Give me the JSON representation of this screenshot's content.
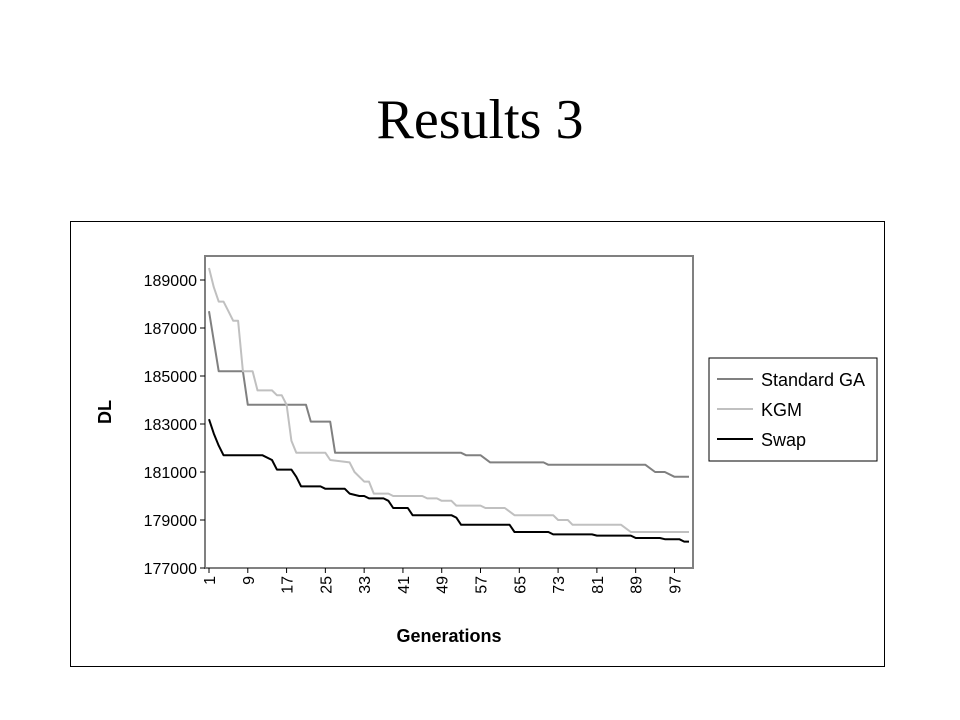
{
  "slide": {
    "title": "Results 3"
  },
  "chart_data": {
    "type": "line",
    "title": "",
    "xlabel": "Generations",
    "ylabel": "DL",
    "ylim": [
      177000,
      190000
    ],
    "xlim": [
      1,
      100
    ],
    "yticks": [
      177000,
      179000,
      181000,
      183000,
      185000,
      187000,
      189000
    ],
    "xticks": [
      1,
      9,
      17,
      25,
      33,
      41,
      49,
      57,
      65,
      73,
      81,
      89,
      97
    ],
    "legend_position": "right",
    "background": "#ffffff",
    "series": [
      {
        "name": "Standard GA",
        "color": "#808080",
        "points": [
          [
            1,
            187700
          ],
          [
            3,
            185200
          ],
          [
            8,
            185200
          ],
          [
            9,
            183800
          ],
          [
            21,
            183800
          ],
          [
            22,
            183100
          ],
          [
            26,
            183100
          ],
          [
            27,
            181800
          ],
          [
            53,
            181800
          ],
          [
            54,
            181700
          ],
          [
            57,
            181700
          ],
          [
            59,
            181400
          ],
          [
            70,
            181400
          ],
          [
            71,
            181300
          ],
          [
            91,
            181300
          ],
          [
            93,
            181000
          ],
          [
            95,
            181000
          ],
          [
            97,
            180800
          ],
          [
            100,
            180800
          ]
        ]
      },
      {
        "name": "KGM",
        "color": "#c0c0c0",
        "points": [
          [
            1,
            189500
          ],
          [
            2,
            188700
          ],
          [
            3,
            188100
          ],
          [
            4,
            188100
          ],
          [
            5,
            187700
          ],
          [
            6,
            187300
          ],
          [
            7,
            187300
          ],
          [
            8,
            185200
          ],
          [
            10,
            185200
          ],
          [
            11,
            184400
          ],
          [
            14,
            184400
          ],
          [
            15,
            184200
          ],
          [
            16,
            184200
          ],
          [
            17,
            183800
          ],
          [
            18,
            182300
          ],
          [
            19,
            181800
          ],
          [
            25,
            181800
          ],
          [
            26,
            181500
          ],
          [
            30,
            181400
          ],
          [
            31,
            181000
          ],
          [
            33,
            180600
          ],
          [
            34,
            180600
          ],
          [
            35,
            180100
          ],
          [
            38,
            180100
          ],
          [
            39,
            180000
          ],
          [
            45,
            180000
          ],
          [
            46,
            179900
          ],
          [
            48,
            179900
          ],
          [
            49,
            179800
          ],
          [
            51,
            179800
          ],
          [
            52,
            179600
          ],
          [
            57,
            179600
          ],
          [
            58,
            179500
          ],
          [
            62,
            179500
          ],
          [
            64,
            179200
          ],
          [
            72,
            179200
          ],
          [
            73,
            179000
          ],
          [
            75,
            179000
          ],
          [
            76,
            178800
          ],
          [
            86,
            178800
          ],
          [
            88,
            178500
          ],
          [
            100,
            178500
          ]
        ]
      },
      {
        "name": "Swap",
        "color": "#000000",
        "points": [
          [
            1,
            183200
          ],
          [
            2,
            182600
          ],
          [
            3,
            182100
          ],
          [
            4,
            181700
          ],
          [
            12,
            181700
          ],
          [
            14,
            181500
          ],
          [
            15,
            181100
          ],
          [
            18,
            181100
          ],
          [
            19,
            180800
          ],
          [
            20,
            180400
          ],
          [
            24,
            180400
          ],
          [
            25,
            180300
          ],
          [
            29,
            180300
          ],
          [
            30,
            180100
          ],
          [
            32,
            180000
          ],
          [
            33,
            180000
          ],
          [
            34,
            179900
          ],
          [
            37,
            179900
          ],
          [
            38,
            179800
          ],
          [
            39,
            179500
          ],
          [
            42,
            179500
          ],
          [
            43,
            179200
          ],
          [
            51,
            179200
          ],
          [
            52,
            179100
          ],
          [
            53,
            178800
          ],
          [
            63,
            178800
          ],
          [
            64,
            178500
          ],
          [
            71,
            178500
          ],
          [
            72,
            178400
          ],
          [
            80,
            178400
          ],
          [
            81,
            178350
          ],
          [
            88,
            178350
          ],
          [
            89,
            178250
          ],
          [
            94,
            178250
          ],
          [
            95,
            178200
          ],
          [
            98,
            178200
          ],
          [
            99,
            178100
          ],
          [
            100,
            178100
          ]
        ]
      }
    ]
  }
}
